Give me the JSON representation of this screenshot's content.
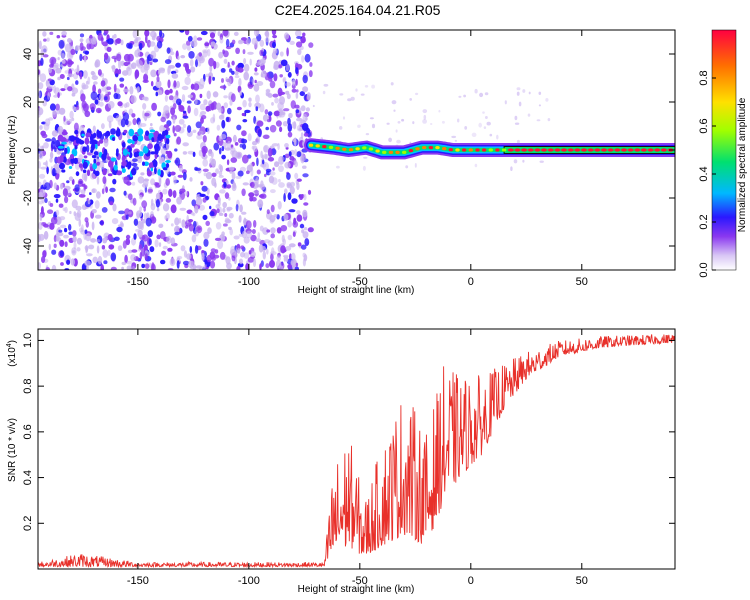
{
  "title": "C2E4.2025.164.04.21.R05",
  "chart_data": [
    {
      "type": "heatmap",
      "xlabel": "Height of straight line (km)",
      "ylabel": "Frequency (Hz)",
      "xlim": [
        -195,
        92
      ],
      "ylim": [
        -50,
        50
      ],
      "xticks": [
        -150,
        -100,
        -50,
        0,
        50
      ],
      "yticks": [
        -40,
        -20,
        0,
        20,
        40
      ],
      "colorbar_label": "Normalized spectral amplitude",
      "colorbar_ticks": [
        0.0,
        0.2,
        0.4,
        0.6,
        0.8
      ],
      "colorbar_range": [
        0,
        1
      ],
      "noise_region_x": [
        -195,
        -72
      ],
      "signal_line_x": [
        -72,
        92
      ],
      "signal_line_freq": 0,
      "signal_ridge": [
        {
          "x": -72,
          "f": 2
        },
        {
          "x": -62,
          "f": 1
        },
        {
          "x": -55,
          "f": 0
        },
        {
          "x": -47,
          "f": 1
        },
        {
          "x": -40,
          "f": -1
        },
        {
          "x": -30,
          "f": -1
        },
        {
          "x": -22,
          "f": 1
        },
        {
          "x": -15,
          "f": 1
        },
        {
          "x": -8,
          "f": 0
        },
        {
          "x": 0,
          "f": 0
        },
        {
          "x": 15,
          "f": 0
        },
        {
          "x": 92,
          "f": 0
        }
      ],
      "colorscale": [
        "#ffffff",
        "#c9b3f0",
        "#8a38f0",
        "#2a18ff",
        "#00c0ff",
        "#00e070",
        "#a0ff00",
        "#ffe000",
        "#ff8000",
        "#ff1030"
      ],
      "grid": false
    },
    {
      "type": "line",
      "xlabel": "Height of straight line (km)",
      "ylabel": "SNR (10 * v/v)",
      "y_multiplier_label": "(x10",
      "y_multiplier_exp": "4",
      "y_multiplier_close": ")",
      "xlim": [
        -195,
        92
      ],
      "ylim": [
        0,
        1.05
      ],
      "xticks": [
        -150,
        -100,
        -50,
        0,
        50
      ],
      "yticks": [
        0.2,
        0.4,
        0.6,
        0.8,
        1.0
      ],
      "line_color": "#e8302a",
      "envelope": [
        {
          "x": -195,
          "lo": 0.01,
          "hi": 0.03
        },
        {
          "x": -176,
          "lo": 0.01,
          "hi": 0.07
        },
        {
          "x": -150,
          "lo": 0.01,
          "hi": 0.03
        },
        {
          "x": -100,
          "lo": 0.01,
          "hi": 0.03
        },
        {
          "x": -66,
          "lo": 0.01,
          "hi": 0.03
        },
        {
          "x": -62,
          "lo": 0.05,
          "hi": 0.45
        },
        {
          "x": -55,
          "lo": 0.1,
          "hi": 0.6
        },
        {
          "x": -48,
          "lo": 0.05,
          "hi": 0.3
        },
        {
          "x": -40,
          "lo": 0.1,
          "hi": 0.55
        },
        {
          "x": -30,
          "lo": 0.15,
          "hi": 0.8
        },
        {
          "x": -20,
          "lo": 0.1,
          "hi": 0.6
        },
        {
          "x": -12,
          "lo": 0.3,
          "hi": 0.9
        },
        {
          "x": -5,
          "lo": 0.4,
          "hi": 0.85
        },
        {
          "x": 5,
          "lo": 0.5,
          "hi": 0.85
        },
        {
          "x": 15,
          "lo": 0.7,
          "hi": 0.9
        },
        {
          "x": 25,
          "lo": 0.83,
          "hi": 0.95
        },
        {
          "x": 40,
          "lo": 0.93,
          "hi": 1.0
        },
        {
          "x": 60,
          "lo": 0.97,
          "hi": 1.02
        },
        {
          "x": 92,
          "lo": 0.99,
          "hi": 1.03
        }
      ],
      "grid": false
    }
  ]
}
